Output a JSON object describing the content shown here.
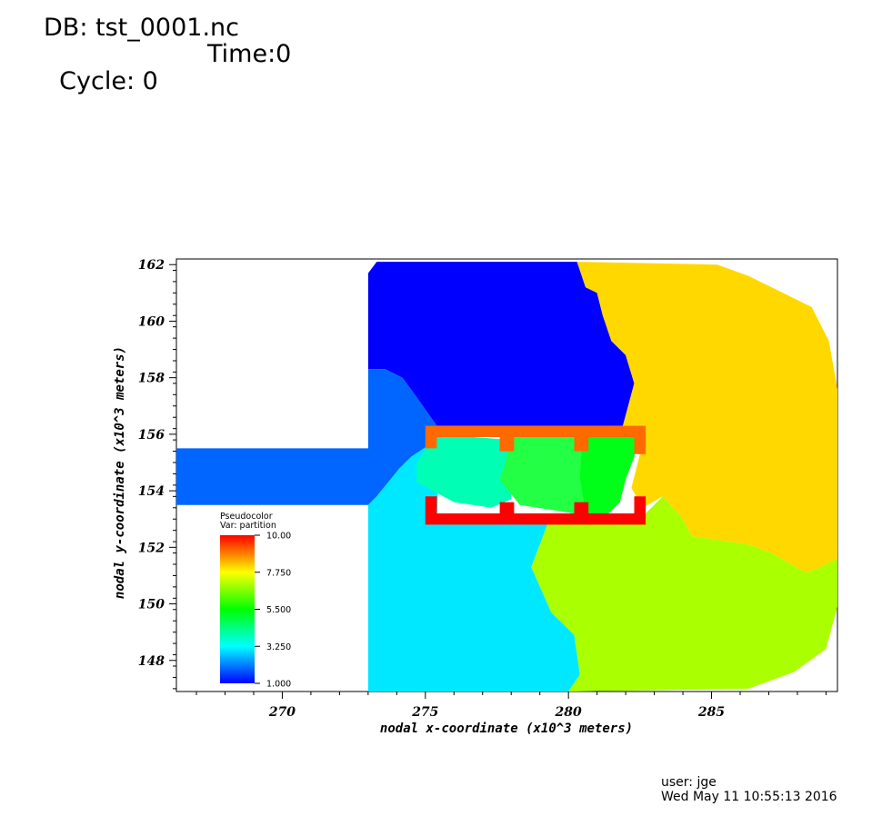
{
  "header": {
    "db_label": "DB: tst_0001.nc",
    "cycle_label": "Cycle: 0",
    "time_label": "Time:0"
  },
  "footer": {
    "user_label": "user: jge",
    "date_label": "Wed May 11 10:55:13 2016"
  },
  "legend": {
    "title": "Pseudocolor",
    "var_label": "Var: partition",
    "max_label": "10.00",
    "ticks": [
      "10.00",
      "7.750",
      "5.500",
      "3.250",
      "1.000"
    ],
    "colormap": [
      "#0000ff",
      "#00ffff",
      "#00ff00",
      "#ffff00",
      "#ff0000"
    ]
  },
  "chart_data": {
    "type": "heatmap",
    "variable": "partition",
    "xlabel": "nodal x-coordinate (x10^3 meters)",
    "ylabel": "nodal y-coordinate (x10^3 meters)",
    "xlim": [
      266.3,
      289.4
    ],
    "ylim": [
      146.9,
      162.2
    ],
    "x_ticks": [
      270,
      275,
      280,
      285
    ],
    "y_ticks": [
      148,
      150,
      152,
      154,
      156,
      158,
      160,
      162
    ],
    "value_range": [
      1.0,
      10.0
    ],
    "colors": {
      "1": "#0000ff",
      "2": "#0066ff",
      "3": "#00e8ff",
      "4": "#00ffb4",
      "5": "#22ff44",
      "6": "#00ff18",
      "7": "#aaff00",
      "8": "#ffd800",
      "9": "#ff6a00",
      "10": "#ff0000"
    },
    "regions": [
      {
        "value": 1,
        "polygon": [
          [
            273.0,
            161.7
          ],
          [
            273.3,
            162.1
          ],
          [
            280.3,
            162.1
          ],
          [
            280.6,
            161.2
          ],
          [
            281.0,
            161.0
          ],
          [
            281.2,
            160.2
          ],
          [
            281.5,
            159.3
          ],
          [
            282.0,
            158.8
          ],
          [
            282.3,
            157.8
          ],
          [
            281.9,
            156.3
          ],
          [
            275.4,
            156.3
          ],
          [
            274.7,
            157.3
          ],
          [
            274.2,
            158.0
          ],
          [
            273.6,
            158.3
          ],
          [
            273.0,
            158.3
          ]
        ]
      },
      {
        "value": 2,
        "polygon": [
          [
            266.3,
            155.5
          ],
          [
            273.0,
            155.5
          ],
          [
            273.0,
            158.3
          ],
          [
            273.6,
            158.3
          ],
          [
            274.2,
            158.0
          ],
          [
            274.7,
            157.3
          ],
          [
            275.4,
            156.3
          ],
          [
            275.1,
            155.6
          ],
          [
            274.5,
            155.2
          ],
          [
            274.1,
            154.8
          ],
          [
            273.7,
            154.3
          ],
          [
            273.3,
            153.8
          ],
          [
            273.0,
            153.5
          ],
          [
            266.3,
            153.5
          ]
        ]
      },
      {
        "value": 3,
        "polygon": [
          [
            273.0,
            153.5
          ],
          [
            273.3,
            153.8
          ],
          [
            273.7,
            154.3
          ],
          [
            274.1,
            154.8
          ],
          [
            274.5,
            155.2
          ],
          [
            275.1,
            155.6
          ],
          [
            275.5,
            155.3
          ],
          [
            275.4,
            153.0
          ],
          [
            279.3,
            152.9
          ],
          [
            278.7,
            151.3
          ],
          [
            279.4,
            149.7
          ],
          [
            280.2,
            148.9
          ],
          [
            280.4,
            147.5
          ],
          [
            280.0,
            146.9
          ],
          [
            273.0,
            146.9
          ]
        ]
      },
      {
        "value": 4,
        "polygon": [
          [
            274.7,
            155.0
          ],
          [
            275.4,
            156.0
          ],
          [
            278.0,
            155.8
          ],
          [
            278.0,
            153.7
          ],
          [
            277.3,
            153.4
          ],
          [
            276.0,
            153.6
          ],
          [
            274.7,
            154.3
          ]
        ]
      },
      {
        "value": 5,
        "polygon": [
          [
            277.8,
            155.0
          ],
          [
            278.0,
            156.0
          ],
          [
            280.5,
            156.0
          ],
          [
            280.6,
            153.6
          ],
          [
            280.2,
            153.2
          ],
          [
            278.3,
            153.5
          ],
          [
            277.6,
            154.4
          ]
        ]
      },
      {
        "value": 6,
        "polygon": [
          [
            280.5,
            156.0
          ],
          [
            282.5,
            156.0
          ],
          [
            282.3,
            155.2
          ],
          [
            282.0,
            154.4
          ],
          [
            281.8,
            153.6
          ],
          [
            281.4,
            153.2
          ],
          [
            280.6,
            153.2
          ],
          [
            280.4,
            154.5
          ]
        ]
      },
      {
        "value": 7,
        "polygon": [
          [
            279.3,
            152.9
          ],
          [
            282.4,
            152.9
          ],
          [
            283.3,
            153.8
          ],
          [
            284.0,
            153.0
          ],
          [
            284.3,
            152.4
          ],
          [
            286.3,
            152.1
          ],
          [
            287.1,
            151.8
          ],
          [
            288.3,
            151.1
          ],
          [
            288.8,
            151.3
          ],
          [
            289.4,
            151.6
          ],
          [
            289.4,
            149.9
          ],
          [
            289.0,
            148.4
          ],
          [
            287.9,
            147.6
          ],
          [
            286.3,
            147.0
          ],
          [
            280.0,
            146.9
          ],
          [
            280.4,
            147.5
          ],
          [
            280.2,
            148.9
          ],
          [
            279.4,
            149.7
          ],
          [
            278.7,
            151.3
          ]
        ]
      },
      {
        "value": 8,
        "polygon": [
          [
            280.3,
            162.1
          ],
          [
            285.2,
            162.0
          ],
          [
            286.3,
            161.6
          ],
          [
            287.3,
            161.1
          ],
          [
            288.5,
            160.5
          ],
          [
            289.1,
            159.3
          ],
          [
            289.4,
            157.6
          ],
          [
            289.4,
            151.6
          ],
          [
            288.8,
            151.3
          ],
          [
            288.3,
            151.1
          ],
          [
            287.1,
            151.8
          ],
          [
            286.3,
            152.1
          ],
          [
            284.3,
            152.4
          ],
          [
            284.0,
            153.0
          ],
          [
            283.3,
            153.8
          ],
          [
            282.6,
            153.4
          ],
          [
            282.2,
            154.1
          ],
          [
            282.5,
            155.3
          ],
          [
            282.5,
            156.0
          ],
          [
            281.9,
            156.3
          ],
          [
            282.3,
            157.8
          ],
          [
            282.0,
            158.8
          ],
          [
            281.5,
            159.3
          ],
          [
            281.2,
            160.2
          ],
          [
            281.0,
            161.0
          ],
          [
            280.6,
            161.2
          ]
        ]
      },
      {
        "value": 9,
        "polygon": [
          [
            275.0,
            156.3
          ],
          [
            282.7,
            156.3
          ],
          [
            282.7,
            155.3
          ],
          [
            282.3,
            155.3
          ],
          [
            282.3,
            155.9
          ],
          [
            280.7,
            155.9
          ],
          [
            280.7,
            155.4
          ],
          [
            280.2,
            155.4
          ],
          [
            280.2,
            155.9
          ],
          [
            278.1,
            155.9
          ],
          [
            278.1,
            155.4
          ],
          [
            277.6,
            155.4
          ],
          [
            277.6,
            155.9
          ],
          [
            275.4,
            155.9
          ],
          [
            275.4,
            155.5
          ],
          [
            275.0,
            155.5
          ]
        ]
      },
      {
        "value": 10,
        "polygon": [
          [
            275.0,
            152.8
          ],
          [
            282.7,
            152.8
          ],
          [
            282.7,
            153.8
          ],
          [
            282.3,
            153.8
          ],
          [
            282.3,
            153.2
          ],
          [
            280.7,
            153.2
          ],
          [
            280.7,
            153.6
          ],
          [
            280.2,
            153.6
          ],
          [
            280.2,
            153.2
          ],
          [
            278.1,
            153.2
          ],
          [
            278.1,
            153.6
          ],
          [
            277.6,
            153.6
          ],
          [
            277.6,
            153.2
          ],
          [
            275.4,
            153.2
          ],
          [
            275.4,
            153.8
          ],
          [
            275.0,
            153.8
          ]
        ]
      }
    ]
  }
}
